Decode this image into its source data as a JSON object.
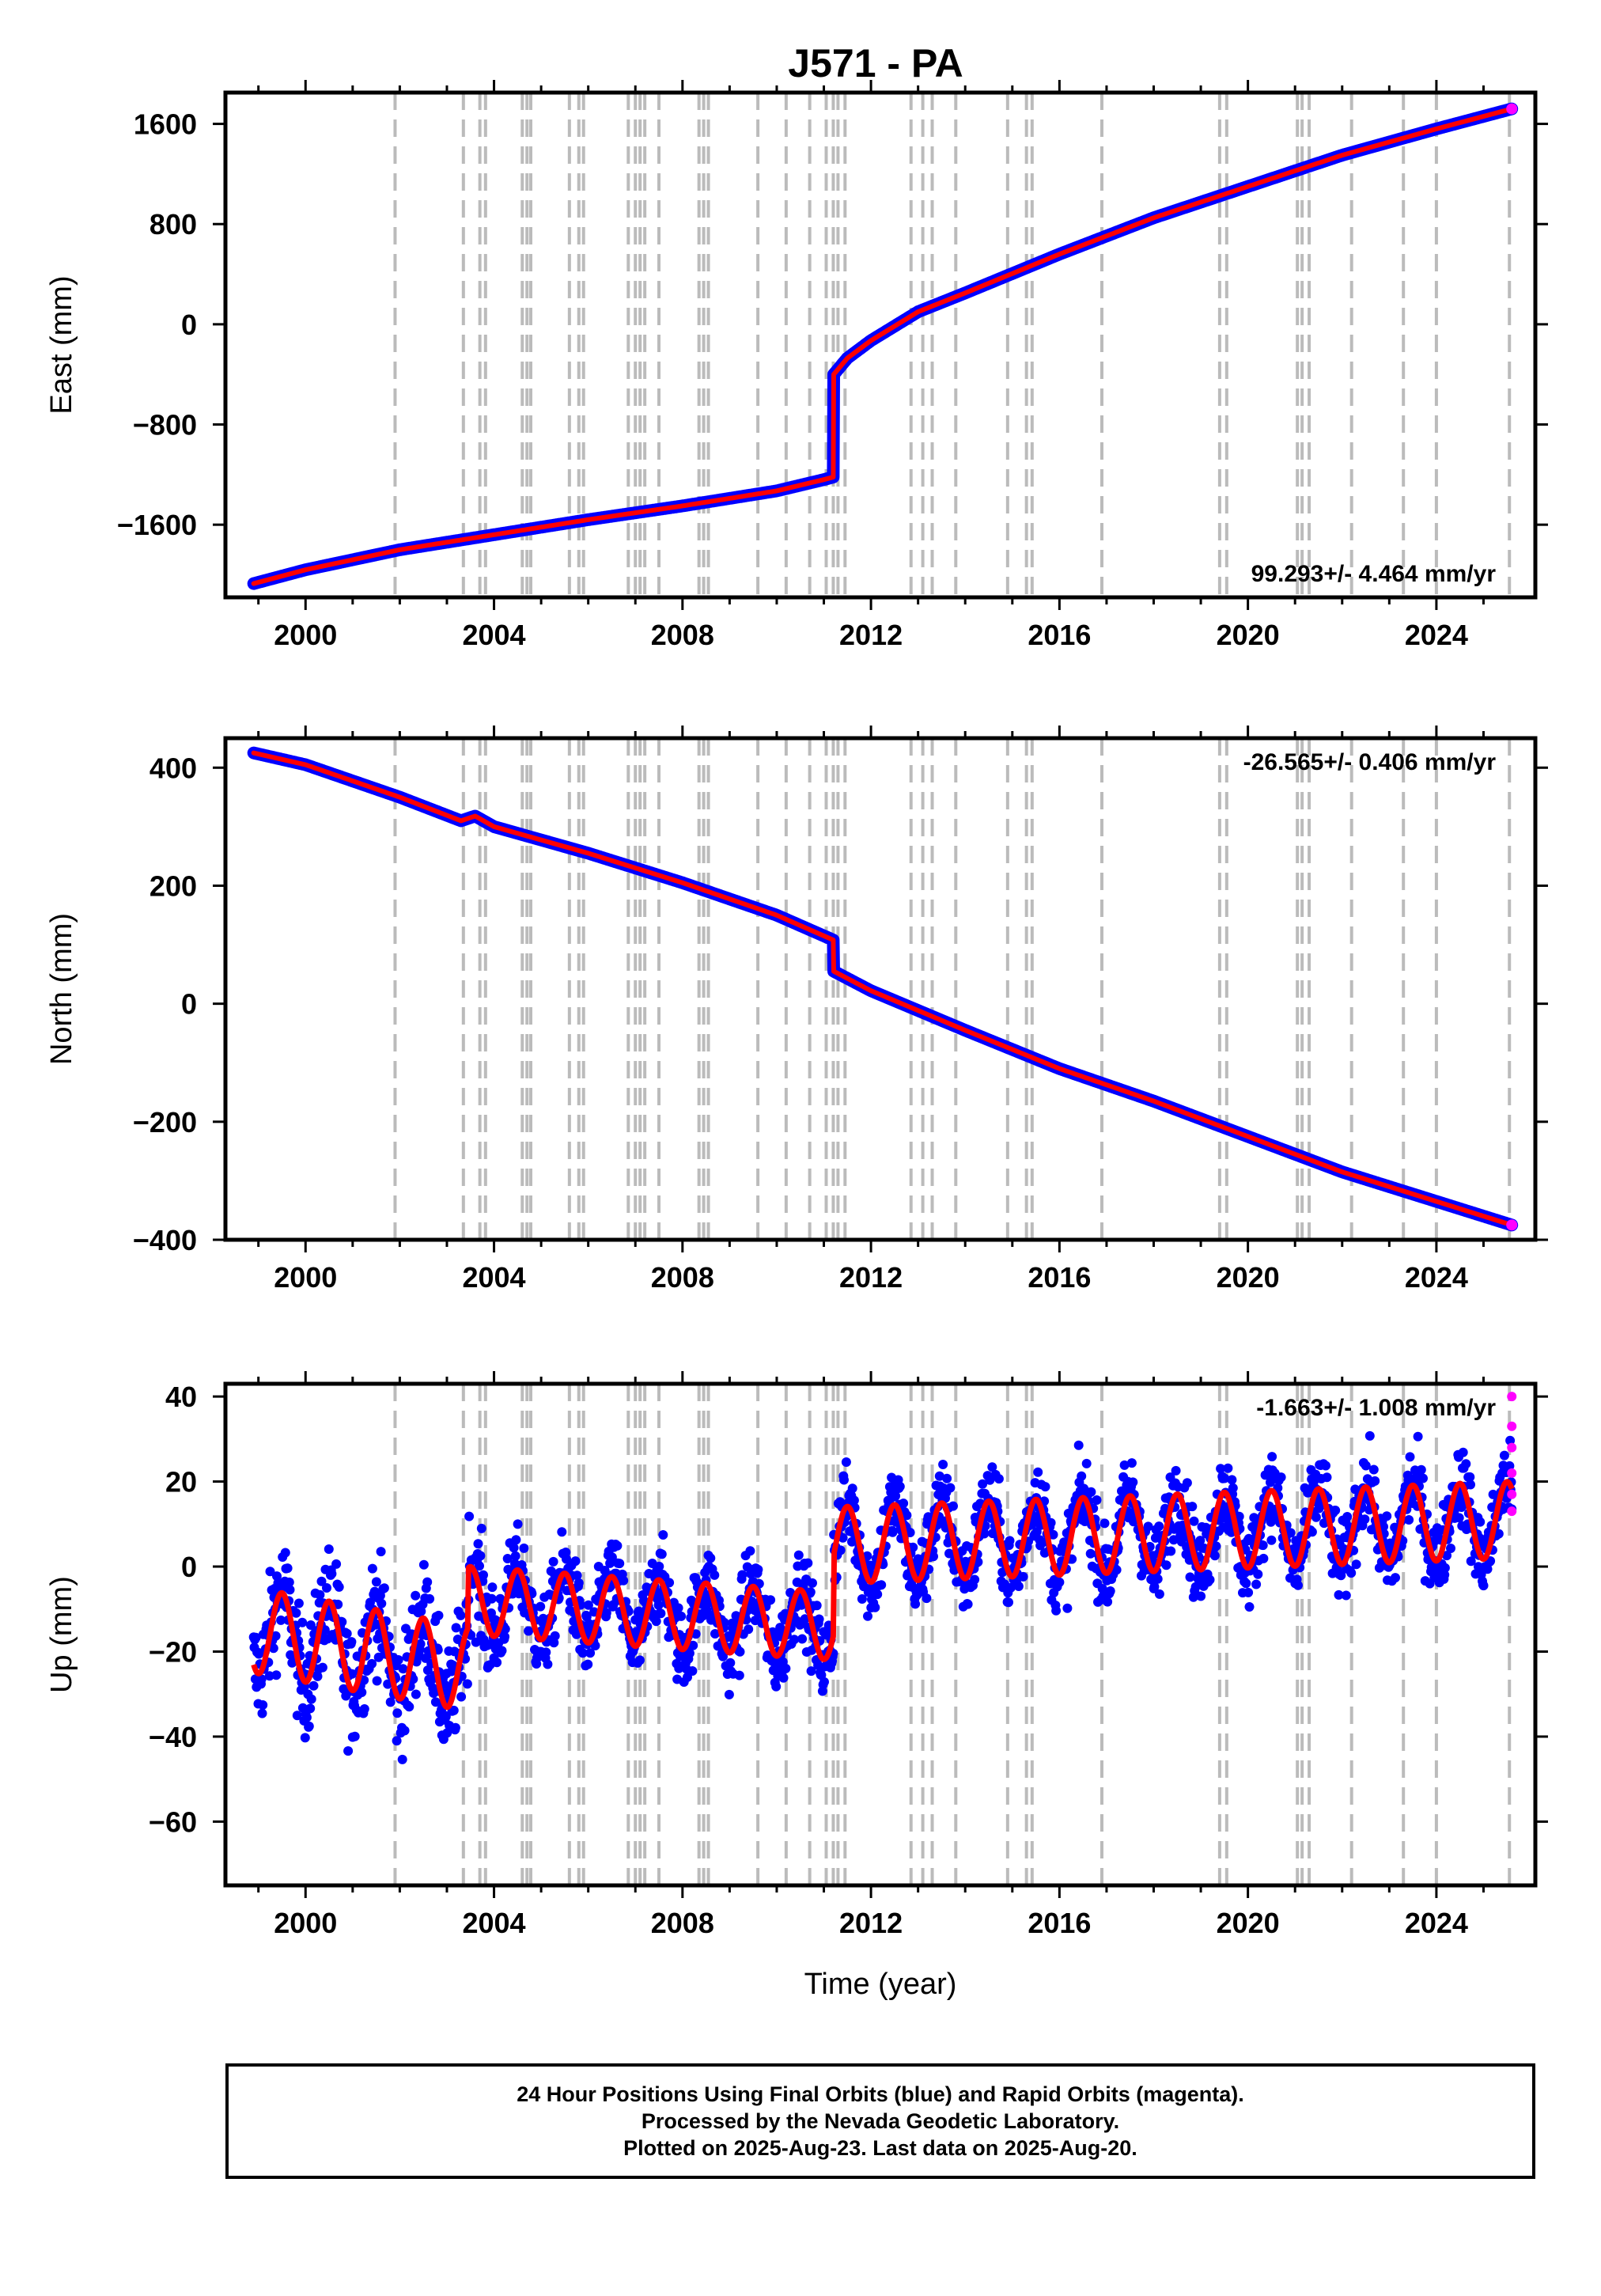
{
  "title": "J571 - PA",
  "colors": {
    "final_orbits": "#0000ff",
    "rapid_orbits": "#ff00ff",
    "fit": "#ff0000",
    "event_lines": "#bbbbbb",
    "axis": "#000000"
  },
  "footer": {
    "line1": "24 Hour Positions Using Final Orbits (blue) and Rapid Orbits (magenta).",
    "line2": "Processed by the Nevada Geodetic Laboratory.",
    "line3": "Plotted on 2025-Aug-23. Last data on 2025-Aug-20."
  },
  "chart_data": [
    {
      "type": "scatter",
      "panel": "east",
      "ylabel": "East (mm)",
      "xlim": [
        1998.3,
        2026.1
      ],
      "ylim": [
        -2180,
        1850
      ],
      "yticks": [
        -1600,
        -800,
        0,
        800,
        1600
      ],
      "xticks": [
        2000,
        2004,
        2008,
        2012,
        2016,
        2020,
        2024
      ],
      "rate_label": "99.293+/- 4.464 mm/yr",
      "rate_position": "bottom-right",
      "series": [
        {
          "role": "final_orbits",
          "x": [
            1998.9,
            2000,
            2002,
            2004,
            2006,
            2008,
            2010,
            2011.0,
            2011.2,
            2011.21,
            2011.5,
            2012,
            2013,
            2014,
            2016,
            2018,
            2020,
            2022,
            2024,
            2025.6
          ],
          "y": [
            -2070,
            -1960,
            -1800,
            -1680,
            -1560,
            -1450,
            -1330,
            -1240,
            -1220,
            -400,
            -270,
            -130,
            100,
            250,
            560,
            850,
            1100,
            1350,
            1560,
            1720
          ]
        }
      ]
    },
    {
      "type": "scatter",
      "panel": "north",
      "ylabel": "North (mm)",
      "xlim": [
        1998.3,
        2026.1
      ],
      "ylim": [
        -400,
        450
      ],
      "yticks": [
        -400,
        -200,
        0,
        200,
        400
      ],
      "xticks": [
        2000,
        2004,
        2008,
        2012,
        2016,
        2020,
        2024
      ],
      "rate_label": "-26.565+/- 0.406 mm/yr",
      "rate_position": "top-right",
      "series": [
        {
          "role": "final_orbits",
          "x": [
            1998.9,
            2000,
            2002,
            2003.3,
            2003.6,
            2004,
            2006,
            2008,
            2010,
            2011.2,
            2011.21,
            2012,
            2014,
            2016,
            2018,
            2020,
            2022,
            2024,
            2025.6
          ],
          "y": [
            425,
            405,
            350,
            310,
            318,
            300,
            255,
            205,
            150,
            108,
            55,
            22,
            -45,
            -110,
            -165,
            -225,
            -285,
            -335,
            -375
          ]
        }
      ]
    },
    {
      "type": "scatter",
      "panel": "up",
      "ylabel": "Up (mm)",
      "xlabel": "Time (year)",
      "xlim": [
        1998.3,
        2026.1
      ],
      "ylim": [
        -75,
        43
      ],
      "yticks": [
        -60,
        -40,
        -20,
        0,
        20,
        40
      ],
      "xticks": [
        2000,
        2004,
        2008,
        2012,
        2016,
        2020,
        2024
      ],
      "rate_label": "-1.663+/- 1.008 mm/yr",
      "rate_position": "top-right",
      "series": [
        {
          "role": "fit",
          "model": "offset + trend + annual",
          "segments": [
            {
              "x_start": 1998.9,
              "x_end": 2003.45,
              "y_start": -15,
              "y_end": -24,
              "amplitude": 10
            },
            {
              "x_start": 2003.45,
              "x_end": 2011.2,
              "y_start": -8,
              "y_end": -14,
              "amplitude": 8
            },
            {
              "x_start": 2011.2,
              "x_end": 2025.6,
              "y_start": 5,
              "y_end": 11,
              "amplitude": 9
            }
          ]
        },
        {
          "role": "rapid_orbits",
          "x": [
            2025.6,
            2025.6,
            2025.6,
            2025.6,
            2025.6,
            2025.6
          ],
          "y": [
            40,
            33,
            28,
            22,
            17,
            13
          ]
        }
      ]
    }
  ],
  "event_years": [
    2001.9,
    2003.35,
    2003.7,
    2003.82,
    2004.6,
    2004.7,
    2004.78,
    2005.6,
    2005.8,
    2005.9,
    2006.85,
    2007.0,
    2007.1,
    2007.2,
    2007.5,
    2008.35,
    2008.45,
    2008.55,
    2009.6,
    2010.2,
    2010.7,
    2011.05,
    2011.2,
    2011.3,
    2011.45,
    2012.85,
    2013.1,
    2013.3,
    2013.8,
    2014.9,
    2015.3,
    2015.42,
    2016.9,
    2019.4,
    2019.55,
    2021.05,
    2021.15,
    2021.3,
    2022.2,
    2023.3,
    2024.0,
    2025.55
  ]
}
